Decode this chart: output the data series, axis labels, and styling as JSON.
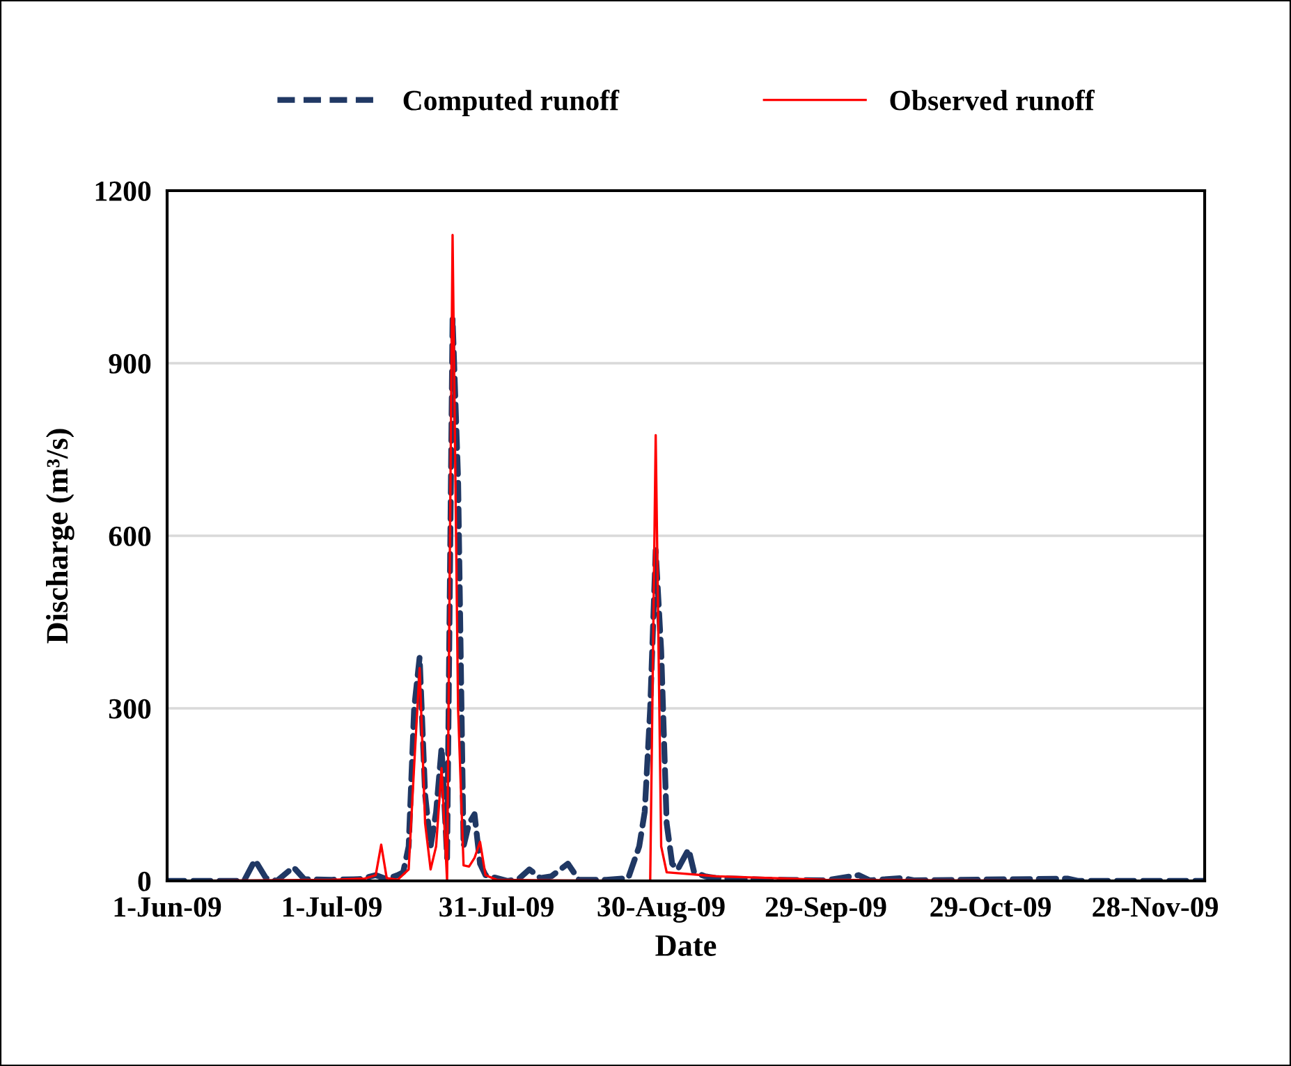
{
  "chart_data": {
    "type": "line",
    "xlabel": "Date",
    "ylabel": "Discharge (m³/s)",
    "ylim": [
      0,
      1200
    ],
    "yticks": [
      0,
      300,
      600,
      900,
      1200
    ],
    "xlim": [
      "2009-06-01",
      "2009-12-07"
    ],
    "xticks": [
      {
        "value": "2009-06-01",
        "label": "1-Jun-09"
      },
      {
        "value": "2009-07-01",
        "label": "1-Jul-09"
      },
      {
        "value": "2009-07-31",
        "label": "31-Jul-09"
      },
      {
        "value": "2009-08-30",
        "label": "30-Aug-09"
      },
      {
        "value": "2009-09-29",
        "label": "29-Sep-09"
      },
      {
        "value": "2009-10-29",
        "label": "29-Oct-09"
      },
      {
        "value": "2009-11-28",
        "label": "28-Nov-09"
      }
    ],
    "grid": "y",
    "legend": "top",
    "series": [
      {
        "name": "Computed runoff",
        "color": "#203864",
        "line_style": "dashed",
        "x": [
          "2009-06-01",
          "2009-06-15",
          "2009-06-17",
          "2009-06-19",
          "2009-06-21",
          "2009-06-24",
          "2009-06-26",
          "2009-07-01",
          "2009-07-06",
          "2009-07-09",
          "2009-07-11",
          "2009-07-13",
          "2009-07-14",
          "2009-07-15",
          "2009-07-16",
          "2009-07-17",
          "2009-07-18",
          "2009-07-19",
          "2009-07-20",
          "2009-07-21",
          "2009-07-22",
          "2009-07-23",
          "2009-07-24",
          "2009-07-25",
          "2009-07-26",
          "2009-07-27",
          "2009-07-28",
          "2009-07-29",
          "2009-07-31",
          "2009-08-02",
          "2009-08-04",
          "2009-08-06",
          "2009-08-08",
          "2009-08-10",
          "2009-08-13",
          "2009-08-15",
          "2009-08-20",
          "2009-08-24",
          "2009-08-26",
          "2009-08-27",
          "2009-08-28",
          "2009-08-29",
          "2009-08-30",
          "2009-08-31",
          "2009-09-01",
          "2009-09-02",
          "2009-09-04",
          "2009-09-05",
          "2009-09-07",
          "2009-09-09",
          "2009-09-19",
          "2009-09-29",
          "2009-10-05",
          "2009-10-07",
          "2009-10-13",
          "2009-10-15",
          "2009-11-12",
          "2009-11-14",
          "2009-12-07"
        ],
        "values": [
          0,
          0,
          36,
          5,
          0,
          24,
          3,
          2,
          3,
          10,
          3,
          10,
          15,
          60,
          300,
          389,
          150,
          60,
          120,
          232,
          40,
          978,
          700,
          60,
          100,
          116,
          30,
          10,
          5,
          0,
          3,
          20,
          5,
          8,
          30,
          2,
          2,
          5,
          60,
          120,
          300,
          575,
          400,
          100,
          30,
          20,
          55,
          15,
          8,
          5,
          2,
          1,
          10,
          1,
          5,
          1,
          4,
          0,
          0
        ]
      },
      {
        "name": "Observed runoff",
        "color": "#ff0000",
        "line_style": "solid",
        "x": [
          "2009-06-01",
          "2009-07-01",
          "2009-07-07",
          "2009-07-09",
          "2009-07-10",
          "2009-07-11",
          "2009-07-13",
          "2009-07-15",
          "2009-07-16",
          "2009-07-17",
          "2009-07-18",
          "2009-07-19",
          "2009-07-20",
          "2009-07-21",
          "2009-07-22",
          "2009-07-23",
          "2009-07-24",
          "2009-07-25",
          "2009-07-26",
          "2009-07-27",
          "2009-07-28",
          "2009-07-29",
          "2009-07-31",
          "2009-08-10",
          "2009-08-28",
          "2009-08-29",
          "2009-08-30",
          "2009-08-31",
          "2009-09-04",
          "2009-09-09",
          "2009-09-19",
          "2009-09-29",
          "2009-10-19",
          "2009-12-07"
        ],
        "values": [
          0,
          2,
          4,
          10,
          63,
          5,
          2,
          20,
          200,
          370,
          100,
          20,
          60,
          196,
          0,
          1123,
          300,
          27,
          25,
          40,
          68,
          10,
          2,
          1,
          0,
          775,
          60,
          15,
          12,
          8,
          5,
          2,
          1,
          0
        ]
      }
    ]
  }
}
